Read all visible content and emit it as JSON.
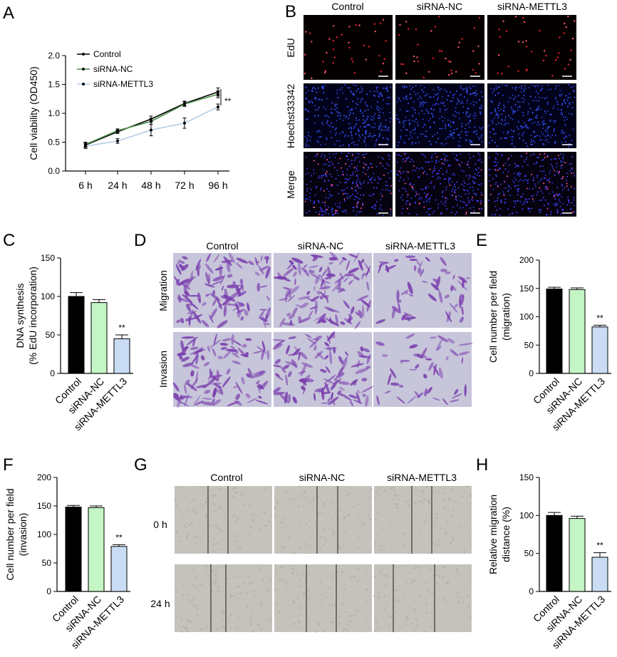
{
  "panels": {
    "A": "A",
    "B": "B",
    "C": "C",
    "D": "D",
    "E": "E",
    "F": "F",
    "G": "G",
    "H": "H"
  },
  "colors": {
    "control": "#000000",
    "siRNA_NC": "#c4f5c4",
    "siRNA_METTL3": "#c9dcf3",
    "line_NC": "#4a8f4a",
    "line_METTL3": "#b5cbe8",
    "edu_bg": "#050000",
    "hoechst_bg": "#02031a",
    "merge_bg": "#06020f",
    "transwell_bg": "#c7c5da",
    "stain": "#7a3fae",
    "wound_bg": "#c4c2bb"
  },
  "chart_data": [
    {
      "panel": "A",
      "type": "line",
      "x": [
        "6 h",
        "24 h",
        "48 h",
        "72 h",
        "96 h"
      ],
      "ylabel": "Cell viability (OD450)",
      "ylim": [
        0,
        2.0
      ],
      "yticks": [
        "0.0",
        "0.5",
        "1.0",
        "1.5",
        "2.0"
      ],
      "legend_position": "top-left",
      "series": [
        {
          "name": "Control",
          "values": [
            0.45,
            0.68,
            0.9,
            1.17,
            1.37
          ],
          "err": [
            0.04,
            0.03,
            0.05,
            0.04,
            0.07
          ]
        },
        {
          "name": "siRNA-NC",
          "values": [
            0.46,
            0.7,
            0.86,
            1.16,
            1.33
          ],
          "err": [
            0.04,
            0.03,
            0.05,
            0.04,
            0.06
          ]
        },
        {
          "name": "siRNA-METTL3",
          "values": [
            0.43,
            0.52,
            0.71,
            0.83,
            1.11
          ],
          "err": [
            0.04,
            0.04,
            0.1,
            0.09,
            0.05
          ]
        }
      ],
      "annotation": "**"
    },
    {
      "panel": "C",
      "type": "bar",
      "categories": [
        "Control",
        "siRNA-NC",
        "siRNA-METTL3"
      ],
      "values": [
        100,
        92,
        45
      ],
      "err": [
        5,
        4,
        5
      ],
      "ylabel_lines": [
        "DNA synthesis",
        "(% EdU incorporation)"
      ],
      "ylim": [
        0,
        150
      ],
      "yticks": [
        "0",
        "50",
        "100",
        "150"
      ],
      "annotation": "**"
    },
    {
      "panel": "E",
      "type": "bar",
      "categories": [
        "Control",
        "siRNA-NC",
        "siRNA-METTL3"
      ],
      "values": [
        149,
        148,
        82
      ],
      "err": [
        3,
        3,
        3
      ],
      "ylabel_lines": [
        "Cell number per field",
        "(migration)"
      ],
      "ylim": [
        0,
        200
      ],
      "yticks": [
        "0",
        "50",
        "100",
        "150",
        "200"
      ],
      "annotation": "**"
    },
    {
      "panel": "F",
      "type": "bar",
      "categories": [
        "Control",
        "siRNA-NC",
        "siRNA-METTL3"
      ],
      "values": [
        148,
        147,
        79
      ],
      "err": [
        3,
        3,
        3
      ],
      "ylabel_lines": [
        "Cell number per field",
        "(invasion)"
      ],
      "ylim": [
        0,
        200
      ],
      "yticks": [
        "0",
        "50",
        "100",
        "150",
        "200"
      ],
      "annotation": "**"
    },
    {
      "panel": "H",
      "type": "bar",
      "categories": [
        "Control",
        "siRNA-NC",
        "siRNA-METTL3"
      ],
      "values": [
        100,
        96,
        45
      ],
      "err": [
        4,
        3,
        6
      ],
      "ylabel_lines": [
        "Relative migration",
        "distance (%)"
      ],
      "ylim": [
        0,
        150
      ],
      "yticks": [
        "0",
        "50",
        "100",
        "150"
      ],
      "annotation": "**"
    }
  ],
  "panel_B": {
    "columns": [
      "Control",
      "siRNA-NC",
      "siRNA-METTL3"
    ],
    "rows": [
      "EdU",
      "Hoechst33342",
      "Merge"
    ]
  },
  "panel_D": {
    "columns": [
      "Control",
      "siRNA-NC",
      "siRNA-METTL3"
    ],
    "rows": [
      "Migration",
      "Invasion"
    ]
  },
  "panel_G": {
    "columns": [
      "Control",
      "siRNA-NC",
      "siRNA-METTL3"
    ],
    "rows": [
      "0 h",
      "24 h"
    ]
  }
}
